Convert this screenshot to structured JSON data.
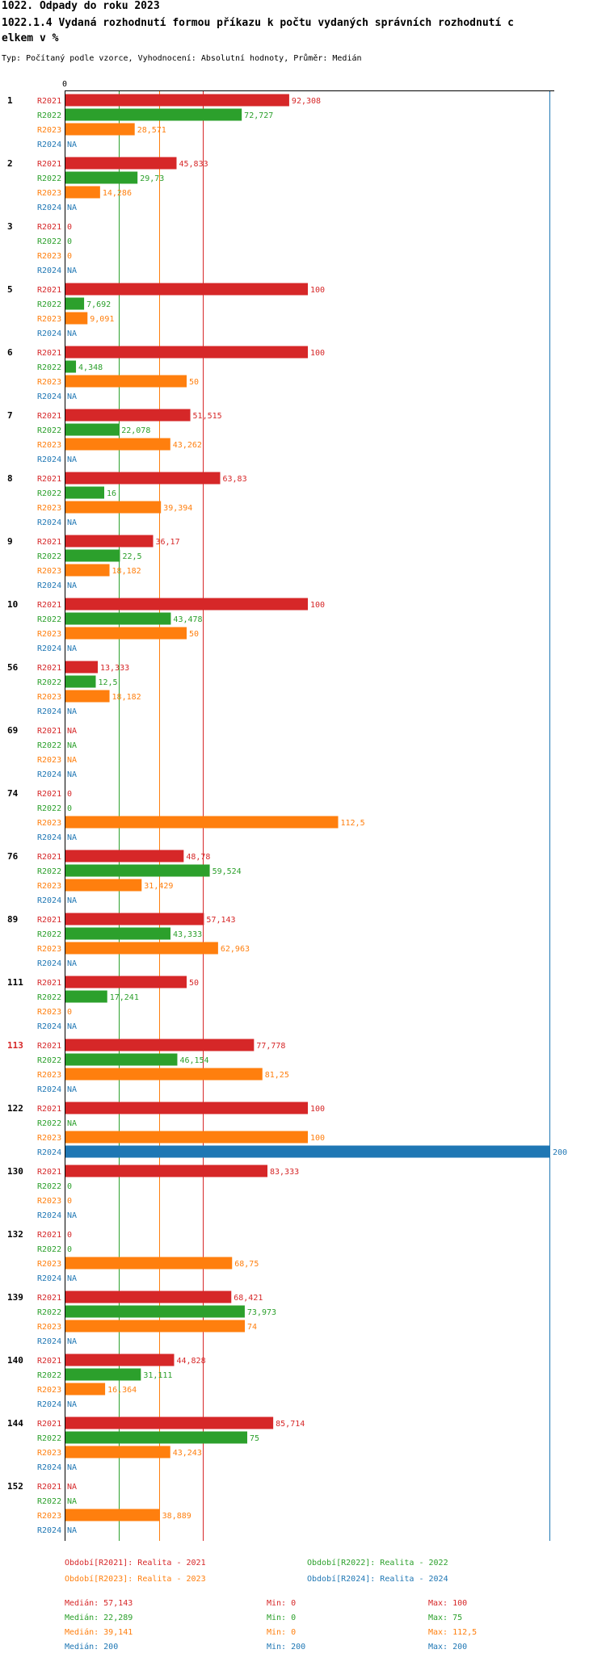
{
  "header": {
    "title": "1022. Odpady do roku 2023",
    "subtitle_line1": "1022.1.4 Vydaná rozhodnutí formou příkazu k počtu vydaných správních rozhodnutí c",
    "subtitle_line2": "elkem v %",
    "type_line": "Typ: Počítaný podle vzorce, Vyhodnocení: Absolutní hodnoty, Průměr: Medián"
  },
  "colors": {
    "R2021": "#d62728",
    "R2022": "#2ca02c",
    "R2023": "#ff7f0e",
    "R2024": "#1f77b4",
    "highlight": "#d62728"
  },
  "chart_data": {
    "type": "bar",
    "orientation": "horizontal",
    "x_axis_tick": "0",
    "xlim": [
      0,
      200
    ],
    "series": [
      "R2021",
      "R2022",
      "R2023",
      "R2024"
    ],
    "groups": [
      {
        "label": "1",
        "highlight": false,
        "values": [
          92.308,
          72.727,
          28.571,
          null
        ],
        "labels": [
          "92,308",
          "72,727",
          "28,571",
          "NA"
        ]
      },
      {
        "label": "2",
        "highlight": false,
        "values": [
          45.833,
          29.73,
          14.286,
          null
        ],
        "labels": [
          "45,833",
          "29,73",
          "14,286",
          "NA"
        ]
      },
      {
        "label": "3",
        "highlight": false,
        "values": [
          0,
          0,
          0,
          null
        ],
        "labels": [
          "0",
          "0",
          "0",
          "NA"
        ]
      },
      {
        "label": "5",
        "highlight": false,
        "values": [
          100,
          7.692,
          9.091,
          null
        ],
        "labels": [
          "100",
          "7,692",
          "9,091",
          "NA"
        ]
      },
      {
        "label": "6",
        "highlight": false,
        "values": [
          100,
          4.348,
          50,
          null
        ],
        "labels": [
          "100",
          "4,348",
          "50",
          "NA"
        ]
      },
      {
        "label": "7",
        "highlight": false,
        "values": [
          51.515,
          22.078,
          43.262,
          null
        ],
        "labels": [
          "51,515",
          "22,078",
          "43,262",
          "NA"
        ]
      },
      {
        "label": "8",
        "highlight": false,
        "values": [
          63.83,
          16,
          39.394,
          null
        ],
        "labels": [
          "63,83",
          "16",
          "39,394",
          "NA"
        ]
      },
      {
        "label": "9",
        "highlight": false,
        "values": [
          36.17,
          22.5,
          18.182,
          null
        ],
        "labels": [
          "36,17",
          "22,5",
          "18,182",
          "NA"
        ]
      },
      {
        "label": "10",
        "highlight": false,
        "values": [
          100,
          43.478,
          50,
          null
        ],
        "labels": [
          "100",
          "43,478",
          "50",
          "NA"
        ]
      },
      {
        "label": "56",
        "highlight": false,
        "values": [
          13.333,
          12.5,
          18.182,
          null
        ],
        "labels": [
          "13,333",
          "12,5",
          "18,182",
          "NA"
        ]
      },
      {
        "label": "69",
        "highlight": false,
        "values": [
          null,
          null,
          null,
          null
        ],
        "labels": [
          "NA",
          "NA",
          "NA",
          "NA"
        ]
      },
      {
        "label": "74",
        "highlight": false,
        "values": [
          0,
          0,
          112.5,
          null
        ],
        "labels": [
          "0",
          "0",
          "112,5",
          "NA"
        ]
      },
      {
        "label": "76",
        "highlight": false,
        "values": [
          48.78,
          59.524,
          31.429,
          null
        ],
        "labels": [
          "48,78",
          "59,524",
          "31,429",
          "NA"
        ]
      },
      {
        "label": "89",
        "highlight": false,
        "values": [
          57.143,
          43.333,
          62.963,
          null
        ],
        "labels": [
          "57,143",
          "43,333",
          "62,963",
          "NA"
        ]
      },
      {
        "label": "111",
        "highlight": false,
        "values": [
          50,
          17.241,
          0,
          null
        ],
        "labels": [
          "50",
          "17,241",
          "0",
          "NA"
        ]
      },
      {
        "label": "113",
        "highlight": true,
        "values": [
          77.778,
          46.154,
          81.25,
          null
        ],
        "labels": [
          "77,778",
          "46,154",
          "81,25",
          "NA"
        ]
      },
      {
        "label": "122",
        "highlight": false,
        "values": [
          100,
          null,
          100,
          200
        ],
        "labels": [
          "100",
          "NA",
          "100",
          "200"
        ]
      },
      {
        "label": "130",
        "highlight": false,
        "values": [
          83.333,
          0,
          0,
          null
        ],
        "labels": [
          "83,333",
          "0",
          "0",
          "NA"
        ]
      },
      {
        "label": "132",
        "highlight": false,
        "values": [
          0,
          0,
          68.75,
          null
        ],
        "labels": [
          "0",
          "0",
          "68,75",
          "NA"
        ]
      },
      {
        "label": "139",
        "highlight": false,
        "values": [
          68.421,
          73.973,
          74,
          null
        ],
        "labels": [
          "68,421",
          "73,973",
          "74",
          "NA"
        ]
      },
      {
        "label": "140",
        "highlight": false,
        "values": [
          44.828,
          31.111,
          16.364,
          null
        ],
        "labels": [
          "44,828",
          "31,111",
          "16,364",
          "NA"
        ]
      },
      {
        "label": "144",
        "highlight": false,
        "values": [
          85.714,
          75,
          43.243,
          null
        ],
        "labels": [
          "85,714",
          "75",
          "43,243",
          "NA"
        ]
      },
      {
        "label": "152",
        "highlight": false,
        "values": [
          null,
          null,
          38.889,
          null
        ],
        "labels": [
          "NA",
          "NA",
          "38,889",
          "NA"
        ]
      }
    ],
    "reference_lines": [
      {
        "series": "R2021",
        "value": 57.143
      },
      {
        "series": "R2022",
        "value": 22.289
      },
      {
        "series": "R2023",
        "value": 39.141
      },
      {
        "series": "R2024",
        "value": 200
      }
    ],
    "legend": [
      {
        "series": "R2021",
        "text": "Období[R2021]: Realita - 2021"
      },
      {
        "series": "R2022",
        "text": "Období[R2022]: Realita - 2022"
      },
      {
        "series": "R2023",
        "text": "Období[R2023]: Realita - 2023"
      },
      {
        "series": "R2024",
        "text": "Období[R2024]: Realita - 2024"
      }
    ],
    "stats": [
      {
        "series": "R2021",
        "median": "Medián: 57,143",
        "min": "Min: 0",
        "max": "Max: 100"
      },
      {
        "series": "R2022",
        "median": "Medián: 22,289",
        "min": "Min: 0",
        "max": "Max: 75"
      },
      {
        "series": "R2023",
        "median": "Medián: 39,141",
        "min": "Min: 0",
        "max": "Max: 112,5"
      },
      {
        "series": "R2024",
        "median": "Medián: 200",
        "min": "Min: 200",
        "max": "Max: 200"
      }
    ]
  }
}
